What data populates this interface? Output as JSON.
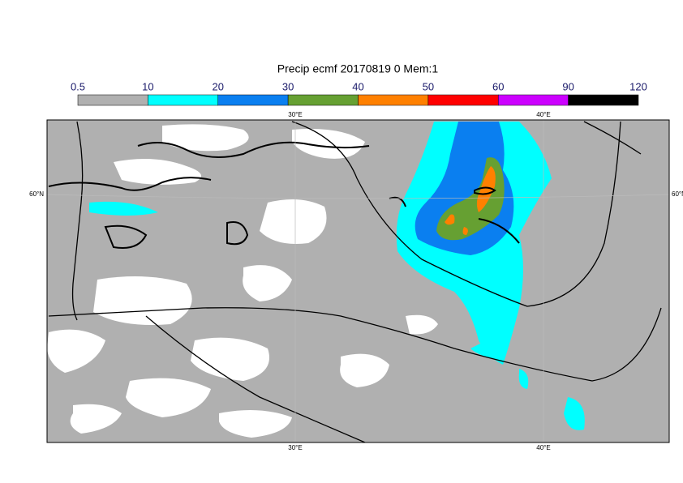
{
  "map": {
    "title": "Precip ecmf 20170819 0 Mem:1",
    "colorbar": {
      "levels": [
        0.5,
        10,
        20,
        30,
        40,
        50,
        60,
        90,
        120
      ],
      "colors": [
        "#b0b0b0",
        "#00ffff",
        "#0a7ff0",
        "#66a032",
        "#ff8000",
        "#ff0000",
        "#cc00ff",
        "#000000"
      ]
    },
    "longitudes": [
      "30°E",
      "40°E"
    ],
    "latitudes": [
      "60°N"
    ]
  }
}
